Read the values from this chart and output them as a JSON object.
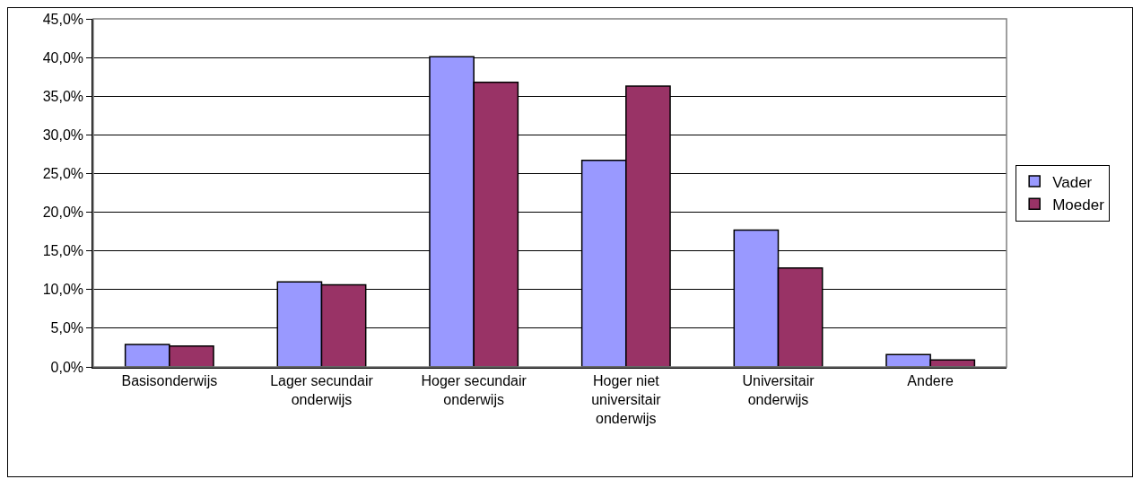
{
  "chart_data": {
    "type": "bar",
    "categories": [
      "Basisonderwijs",
      "Lager secundair onderwijs",
      "Hoger secundair onderwijs",
      "Hoger niet universitair onderwijs",
      "Universitair onderwijs",
      "Andere"
    ],
    "series": [
      {
        "name": "Vader",
        "color": "#9999ff",
        "values": [
          2.9,
          11.0,
          40.1,
          26.7,
          17.7,
          1.6
        ]
      },
      {
        "name": "Moeder",
        "color": "#993366",
        "values": [
          2.7,
          10.6,
          36.8,
          36.3,
          12.8,
          0.9
        ]
      }
    ],
    "ylim": [
      0,
      45
    ],
    "yticks": [
      {
        "value": 0,
        "label": "0,0%"
      },
      {
        "value": 5,
        "label": "5,0%"
      },
      {
        "value": 10,
        "label": "10,0%"
      },
      {
        "value": 15,
        "label": "15,0%"
      },
      {
        "value": 20,
        "label": "20,0%"
      },
      {
        "value": 25,
        "label": "25,0%"
      },
      {
        "value": 30,
        "label": "30,0%"
      },
      {
        "value": 35,
        "label": "35,0%"
      },
      {
        "value": 40,
        "label": "40,0%"
      },
      {
        "value": 45,
        "label": "45,0%"
      }
    ],
    "grid": "y",
    "legend": "right"
  }
}
